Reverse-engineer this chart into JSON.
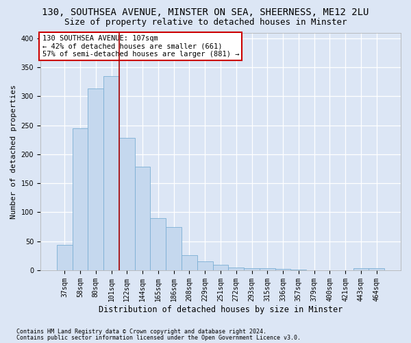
{
  "title1": "130, SOUTHSEA AVENUE, MINSTER ON SEA, SHEERNESS, ME12 2LU",
  "title2": "Size of property relative to detached houses in Minster",
  "xlabel": "Distribution of detached houses by size in Minster",
  "ylabel": "Number of detached properties",
  "categories": [
    "37sqm",
    "58sqm",
    "80sqm",
    "101sqm",
    "122sqm",
    "144sqm",
    "165sqm",
    "186sqm",
    "208sqm",
    "229sqm",
    "251sqm",
    "272sqm",
    "293sqm",
    "315sqm",
    "336sqm",
    "357sqm",
    "379sqm",
    "400sqm",
    "421sqm",
    "443sqm",
    "464sqm"
  ],
  "bar_values": [
    44,
    245,
    313,
    335,
    228,
    179,
    90,
    74,
    26,
    15,
    9,
    5,
    4,
    3,
    2,
    1,
    0,
    0,
    0,
    3,
    3
  ],
  "bar_color": "#c5d8ee",
  "bar_edge_color": "#7bafd4",
  "vline_position": 3.5,
  "vline_color": "#aa0000",
  "annotation_text": "130 SOUTHSEA AVENUE: 107sqm\n← 42% of detached houses are smaller (661)\n57% of semi-detached houses are larger (881) →",
  "annotation_box_facecolor": "white",
  "annotation_box_edgecolor": "#cc0000",
  "ylim_max": 410,
  "yticks": [
    0,
    50,
    100,
    150,
    200,
    250,
    300,
    350,
    400
  ],
  "footnote1": "Contains HM Land Registry data © Crown copyright and database right 2024.",
  "footnote2": "Contains public sector information licensed under the Open Government Licence v3.0.",
  "bg_color": "#dce6f5",
  "grid_color": "#ffffff",
  "title1_fontsize": 10,
  "title2_fontsize": 9,
  "tick_fontsize": 7,
  "ylabel_fontsize": 8,
  "xlabel_fontsize": 8.5,
  "footnote_fontsize": 6,
  "annot_fontsize": 7.5
}
